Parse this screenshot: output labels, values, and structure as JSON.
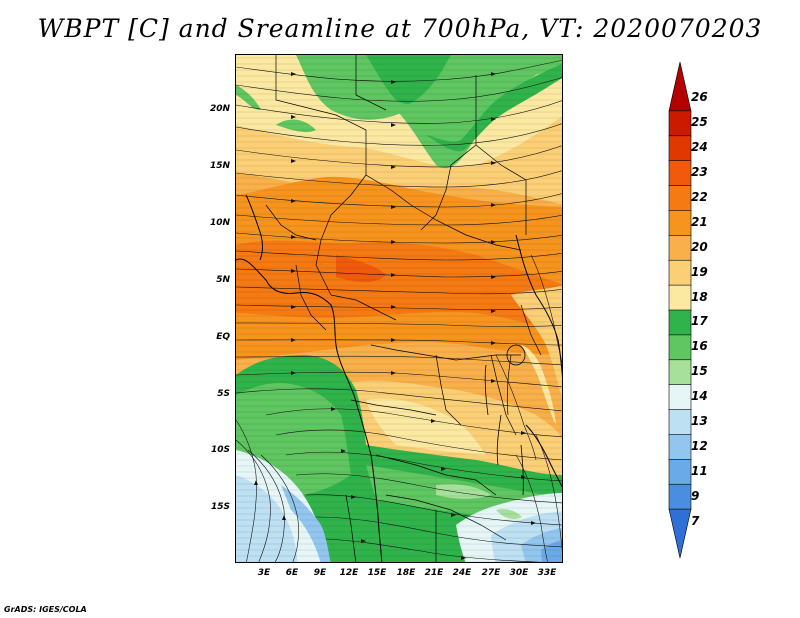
{
  "title": "WBPT [C] and Sreamline at 700hPa, VT: 2020070203",
  "credit": "GrADS: IGES/COLA",
  "map": {
    "variable": "WBPT",
    "unit": "C",
    "level": "700hPa",
    "valid_time": "2020070203",
    "overlay": "streamlines",
    "lat_ticks": [
      "20N",
      "15N",
      "10N",
      "5N",
      "EQ",
      "5S",
      "10S",
      "15S"
    ],
    "lon_ticks": [
      "3E",
      "6E",
      "9E",
      "12E",
      "15E",
      "18E",
      "21E",
      "24E",
      "27E",
      "30E",
      "33E"
    ]
  },
  "colorbar": {
    "labels": [
      "26",
      "25",
      "24",
      "23",
      "22",
      "21",
      "20",
      "19",
      "18",
      "17",
      "16",
      "15",
      "14",
      "13",
      "12",
      "11",
      "9",
      "7"
    ],
    "colors": [
      "#b40000",
      "#cc1a00",
      "#e03800",
      "#f05a0a",
      "#f57a14",
      "#f7941e",
      "#f9b04a",
      "#fbcf76",
      "#fbe9a2",
      "#2fb34a",
      "#5fc661",
      "#a6e09a",
      "#e6f6f6",
      "#bde0f3",
      "#93c6ef",
      "#6aaae8",
      "#4a8ee0",
      "#2f6fd6"
    ]
  }
}
